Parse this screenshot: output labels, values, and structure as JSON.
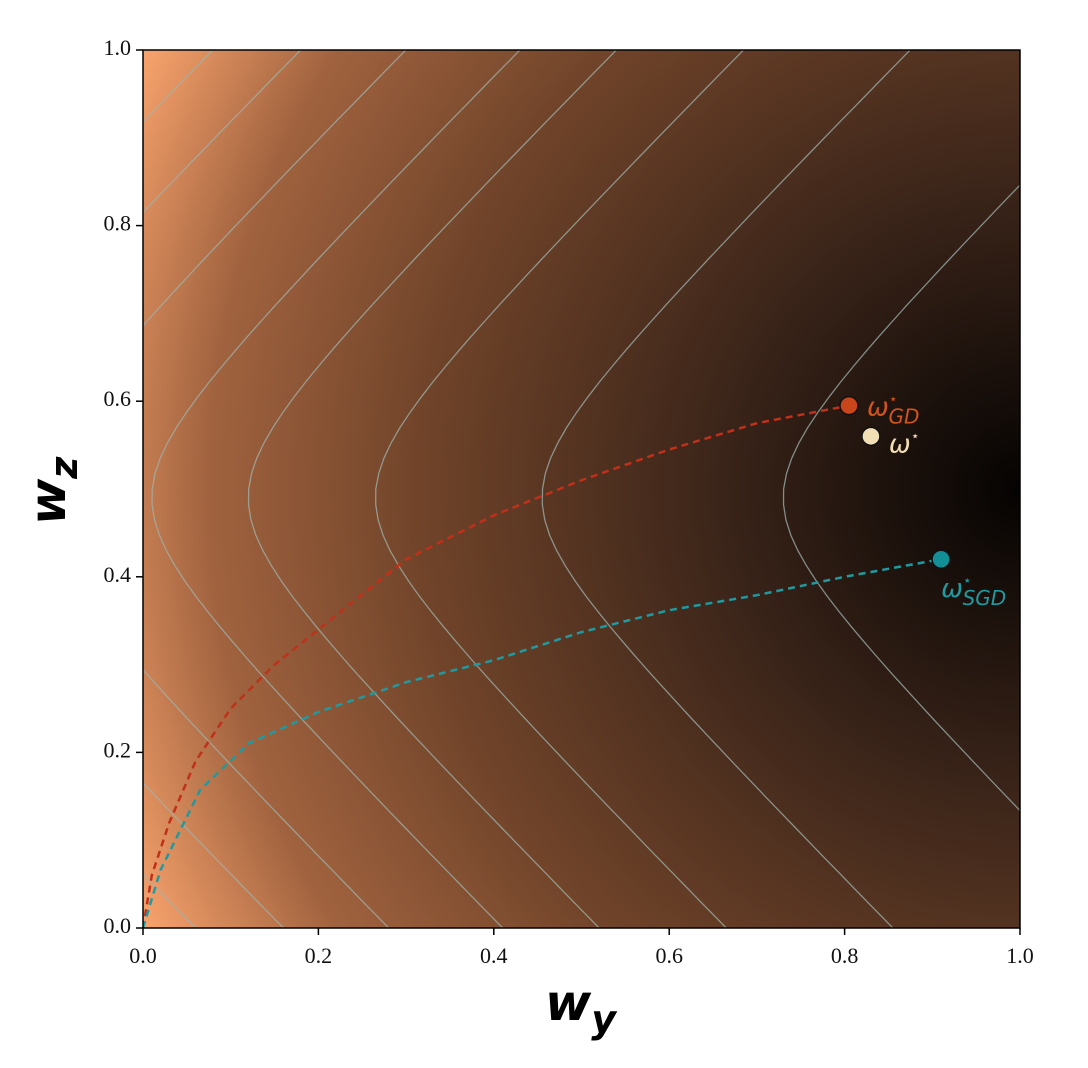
{
  "chart_data": {
    "type": "line",
    "xlabel": {
      "text": "w",
      "sub": "y"
    },
    "ylabel": {
      "text": "w",
      "sub": "z"
    },
    "xlim": [
      0,
      1
    ],
    "ylim": [
      0,
      1
    ],
    "xticks": [
      {
        "value": 0,
        "label": "0.0"
      },
      0.2,
      0.4,
      0.6,
      0.8,
      {
        "value": 1,
        "label": "1.0"
      }
    ],
    "yticks": [
      {
        "value": 0,
        "label": "0.0"
      },
      0.2,
      0.4,
      0.6,
      0.8,
      {
        "value": 1,
        "label": "1.0"
      }
    ],
    "series": [
      {
        "label": "ω",
        "label_sup": "⋆",
        "label_sub": "GD",
        "color": "#c0301a",
        "marker_color": "#c8461a",
        "label_color": "#d0541e",
        "x": [
          0,
          0.01,
          0.03,
          0.06,
          0.1,
          0.15,
          0.2,
          0.3,
          0.4,
          0.5,
          0.6,
          0.7,
          0.805
        ],
        "y": [
          0,
          0.06,
          0.12,
          0.19,
          0.25,
          0.3,
          0.34,
          0.42,
          0.47,
          0.51,
          0.545,
          0.575,
          0.595
        ]
      },
      {
        "label": "ω",
        "label_sup": "⋆",
        "label_sub": "SGD",
        "color": "#1f9aa0",
        "marker_color": "#138f96",
        "label_color": "#1f9aa0",
        "x": [
          0,
          0.02,
          0.065,
          0.12,
          0.2,
          0.3,
          0.4,
          0.5,
          0.6,
          0.7,
          0.8,
          0.91
        ],
        "y": [
          0,
          0.066,
          0.157,
          0.21,
          0.246,
          0.28,
          0.305,
          0.337,
          0.362,
          0.379,
          0.4,
          0.42
        ]
      }
    ],
    "points": [
      {
        "label": "ω",
        "label_sup": "⋆",
        "x": 0.83,
        "y": 0.56,
        "color": "#f3dfb5"
      }
    ]
  }
}
